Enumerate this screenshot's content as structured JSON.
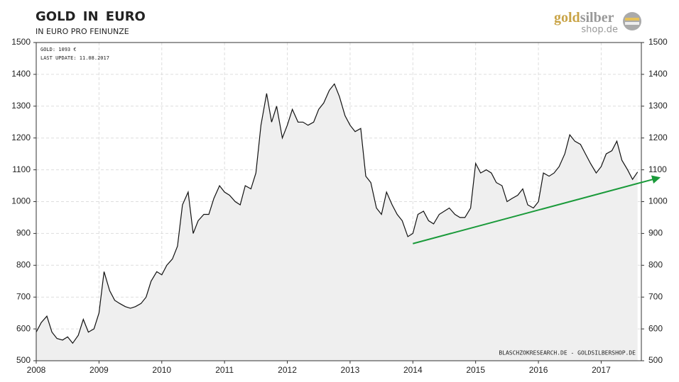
{
  "chart_data": {
    "type": "line",
    "title": "GOLD IN EURO",
    "subtitle": "IN EURO PRO FEINUNZE",
    "logo_gold": "gold",
    "logo_silber": "silber",
    "logo_sub": "shop.de",
    "annotations": [
      "GOLD: 1093 €",
      "LAST UPDATE: 11.08.2017"
    ],
    "source": "BLASCHZOKRESEARCH.DE  -  GOLDSILBERSHOP.DE",
    "x": [
      2008.0,
      2008.08,
      2008.17,
      2008.25,
      2008.33,
      2008.42,
      2008.5,
      2008.58,
      2008.67,
      2008.75,
      2008.83,
      2008.92,
      2009.0,
      2009.08,
      2009.17,
      2009.25,
      2009.33,
      2009.42,
      2009.5,
      2009.58,
      2009.67,
      2009.75,
      2009.83,
      2009.92,
      2010.0,
      2010.08,
      2010.17,
      2010.25,
      2010.33,
      2010.42,
      2010.5,
      2010.58,
      2010.67,
      2010.75,
      2010.83,
      2010.92,
      2011.0,
      2011.08,
      2011.17,
      2011.25,
      2011.33,
      2011.42,
      2011.5,
      2011.58,
      2011.67,
      2011.75,
      2011.83,
      2011.92,
      2012.0,
      2012.08,
      2012.17,
      2012.25,
      2012.33,
      2012.42,
      2012.5,
      2012.58,
      2012.67,
      2012.75,
      2012.83,
      2012.92,
      2013.0,
      2013.08,
      2013.17,
      2013.25,
      2013.33,
      2013.42,
      2013.5,
      2013.58,
      2013.67,
      2013.75,
      2013.83,
      2013.92,
      2014.0,
      2014.08,
      2014.17,
      2014.25,
      2014.33,
      2014.42,
      2014.5,
      2014.58,
      2014.67,
      2014.75,
      2014.83,
      2014.92,
      2015.0,
      2015.08,
      2015.17,
      2015.25,
      2015.33,
      2015.42,
      2015.5,
      2015.58,
      2015.67,
      2015.75,
      2015.83,
      2015.92,
      2016.0,
      2016.08,
      2016.17,
      2016.25,
      2016.33,
      2016.42,
      2016.5,
      2016.58,
      2016.67,
      2016.75,
      2016.83,
      2016.92,
      2017.0,
      2017.08,
      2017.17,
      2017.25,
      2017.33,
      2017.42,
      2017.5,
      2017.58
    ],
    "series": [
      {
        "name": "GOLD",
        "color": "#111111",
        "fill": "#efefef",
        "values": [
          590,
          620,
          640,
          590,
          570,
          565,
          575,
          555,
          580,
          630,
          590,
          600,
          650,
          780,
          720,
          690,
          680,
          670,
          665,
          670,
          680,
          700,
          750,
          780,
          770,
          800,
          820,
          860,
          990,
          1030,
          900,
          940,
          960,
          960,
          1010,
          1050,
          1030,
          1020,
          1000,
          990,
          1050,
          1040,
          1090,
          1240,
          1340,
          1250,
          1300,
          1200,
          1240,
          1290,
          1250,
          1250,
          1240,
          1250,
          1290,
          1310,
          1350,
          1370,
          1330,
          1270,
          1240,
          1220,
          1230,
          1080,
          1060,
          980,
          960,
          1030,
          990,
          960,
          940,
          890,
          900,
          960,
          970,
          940,
          930,
          960,
          970,
          980,
          960,
          950,
          950,
          980,
          1120,
          1090,
          1100,
          1090,
          1060,
          1050,
          1000,
          1010,
          1020,
          1040,
          990,
          980,
          1000,
          1090,
          1080,
          1090,
          1110,
          1150,
          1210,
          1190,
          1180,
          1150,
          1120,
          1090,
          1110,
          1150,
          1160,
          1190,
          1130,
          1100,
          1070,
          1093
        ]
      }
    ],
    "trend": {
      "x": [
        2014.0,
        2017.92
      ],
      "values": [
        868,
        1075
      ],
      "color": "#1a9a3a"
    },
    "xlim": [
      2008,
      2017.64
    ],
    "xticks": [
      2008,
      2009,
      2010,
      2011,
      2012,
      2013,
      2014,
      2015,
      2016,
      2017
    ],
    "ylim": [
      500,
      1500
    ],
    "yticks": [
      500,
      600,
      700,
      800,
      900,
      1000,
      1100,
      1200,
      1300,
      1400,
      1500
    ],
    "y2lim": [
      500,
      1500
    ],
    "y2ticks": [
      500,
      600,
      700,
      800,
      900,
      1000,
      1100,
      1200,
      1300,
      1400,
      1500
    ],
    "grid": true
  }
}
